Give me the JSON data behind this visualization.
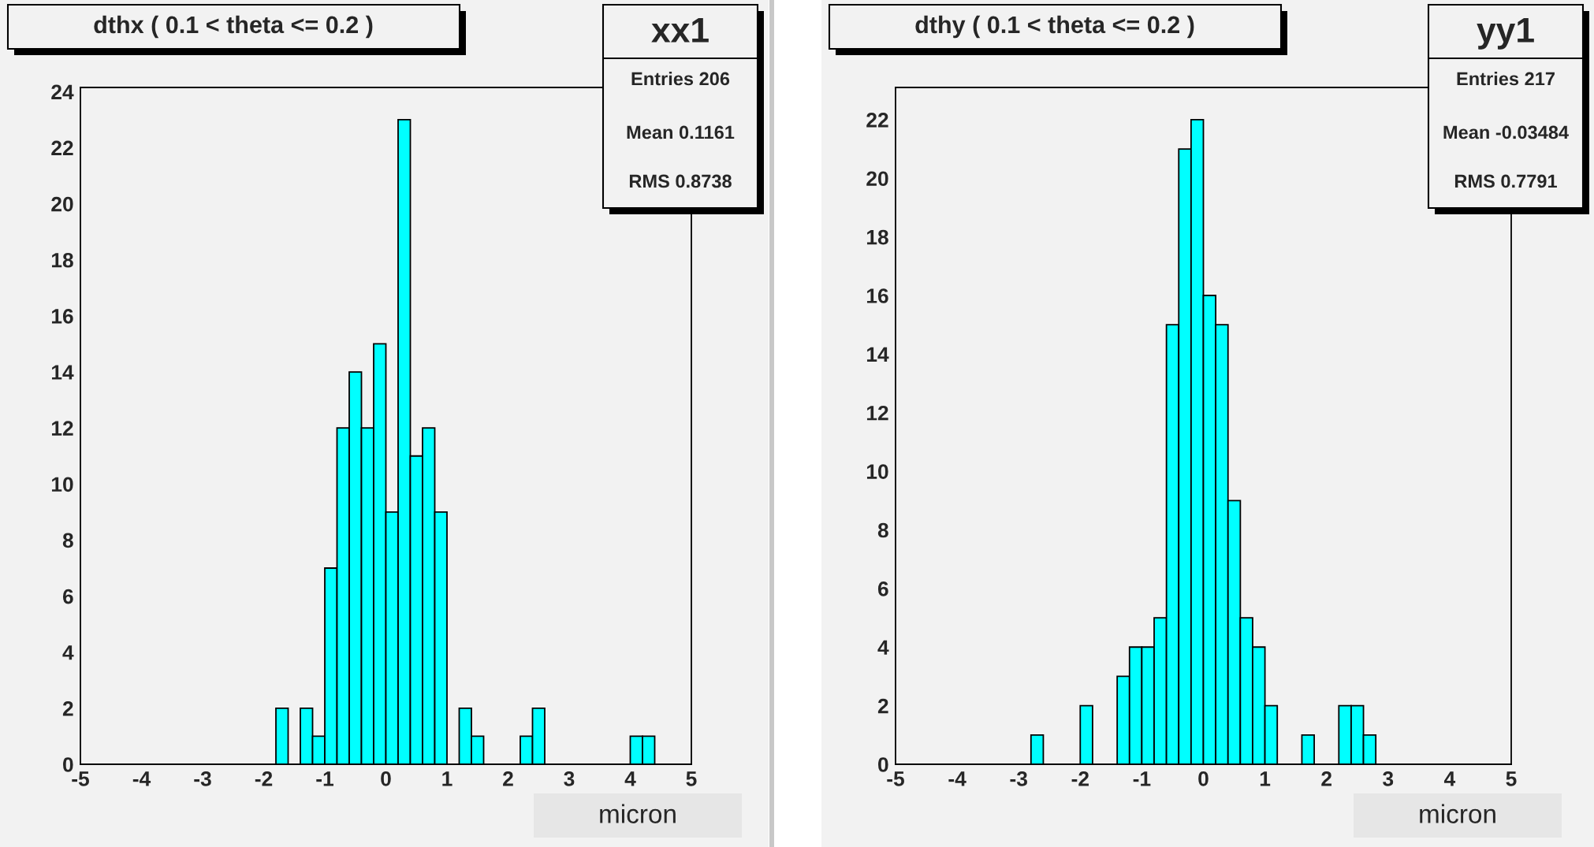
{
  "chart_data": [
    {
      "type": "histogram",
      "title": "dthx ( 0.1 < theta <= 0.2 )",
      "xlabel": "micron",
      "color": "#00ffff",
      "bins": [
        -5.0,
        -4.8,
        -4.6,
        -4.4,
        -4.2,
        -4.0,
        -3.8,
        -3.6,
        -3.4,
        -3.2,
        -3.0,
        -2.8,
        -2.6,
        -2.4,
        -2.2,
        -2.0,
        -1.8,
        -1.6,
        -1.4,
        -1.2,
        -1.0,
        -0.8,
        -0.6,
        -0.4,
        -0.2,
        0.0,
        0.2,
        0.4,
        0.6,
        0.8,
        1.0,
        1.2,
        1.4,
        1.6,
        1.8,
        2.0,
        2.2,
        2.4,
        2.6,
        2.8,
        3.0,
        3.2,
        3.4,
        3.6,
        3.8,
        4.0,
        4.2,
        4.4,
        4.6,
        4.8,
        5.0
      ],
      "values": [
        0,
        0,
        0,
        0,
        0,
        0,
        0,
        0,
        0,
        0,
        0,
        0,
        0,
        0,
        0,
        0,
        2,
        0,
        2,
        1,
        7,
        12,
        14,
        12,
        15,
        9,
        23,
        11,
        12,
        9,
        0,
        2,
        1,
        0,
        0,
        0,
        1,
        2,
        0,
        0,
        0,
        0,
        0,
        0,
        0,
        1,
        1,
        0,
        0,
        0
      ],
      "xlim": [
        -5,
        5
      ],
      "ylim": [
        0,
        24.15
      ],
      "xticks": [
        -5,
        -4,
        -3,
        -2,
        -1,
        0,
        1,
        2,
        3,
        4,
        5
      ],
      "yticks": [
        0,
        2,
        4,
        6,
        8,
        10,
        12,
        14,
        16,
        18,
        20,
        22,
        24
      ],
      "grid": false,
      "annotations": [
        "xx1",
        "Entries 206",
        "Mean 0.1161",
        "RMS 0.8738"
      ]
    },
    {
      "type": "histogram",
      "title": "dthy ( 0.1 < theta <= 0.2 )",
      "xlabel": "micron",
      "color": "#00ffff",
      "bins": [
        -5.0,
        -4.8,
        -4.6,
        -4.4,
        -4.2,
        -4.0,
        -3.8,
        -3.6,
        -3.4,
        -3.2,
        -3.0,
        -2.8,
        -2.6,
        -2.4,
        -2.2,
        -2.0,
        -1.8,
        -1.6,
        -1.4,
        -1.2,
        -1.0,
        -0.8,
        -0.6,
        -0.4,
        -0.2,
        0.0,
        0.2,
        0.4,
        0.6,
        0.8,
        1.0,
        1.2,
        1.4,
        1.6,
        1.8,
        2.0,
        2.2,
        2.4,
        2.6,
        2.8,
        3.0,
        3.2,
        3.4,
        3.6,
        3.8,
        4.0,
        4.2,
        4.4,
        4.6,
        4.8,
        5.0
      ],
      "values": [
        0,
        0,
        0,
        0,
        0,
        0,
        0,
        0,
        0,
        0,
        0,
        1,
        0,
        0,
        0,
        2,
        0,
        0,
        3,
        4,
        4,
        5,
        15,
        21,
        22,
        16,
        15,
        9,
        5,
        4,
        2,
        0,
        0,
        1,
        0,
        0,
        2,
        2,
        1,
        0,
        0,
        0,
        0,
        0,
        0,
        0,
        0,
        0,
        0,
        0
      ],
      "xlim": [
        -5,
        5
      ],
      "ylim": [
        0,
        23.1
      ],
      "xticks": [
        -5,
        -4,
        -3,
        -2,
        -1,
        0,
        1,
        2,
        3,
        4,
        5
      ],
      "yticks": [
        0,
        2,
        4,
        6,
        8,
        10,
        12,
        14,
        16,
        18,
        20,
        22
      ],
      "grid": false,
      "annotations": [
        "yy1",
        "Entries 217",
        "Mean -0.03484",
        "RMS 0.7791"
      ]
    }
  ]
}
